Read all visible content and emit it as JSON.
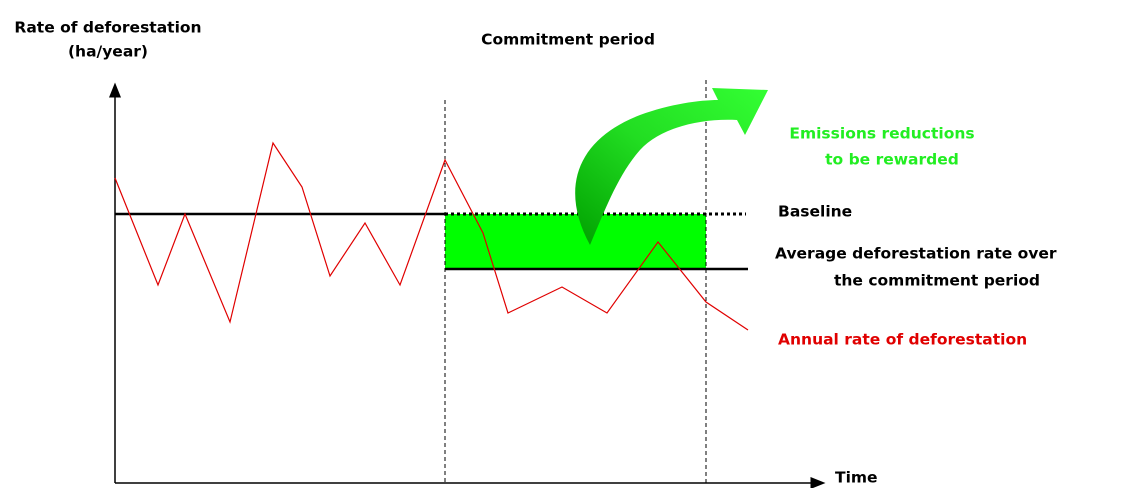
{
  "y_axis_label": [
    "Rate of deforestation",
    "(ha/year)"
  ],
  "commitment_label": "Commitment period",
  "reductions_label": [
    "Emissions reductions",
    "to be rewarded"
  ],
  "baseline_label": "Baseline",
  "average_label": [
    "Average deforestation rate over",
    "the commitment period"
  ],
  "annual_label": "Annual rate of deforestation",
  "x_axis_label": "Time"
}
